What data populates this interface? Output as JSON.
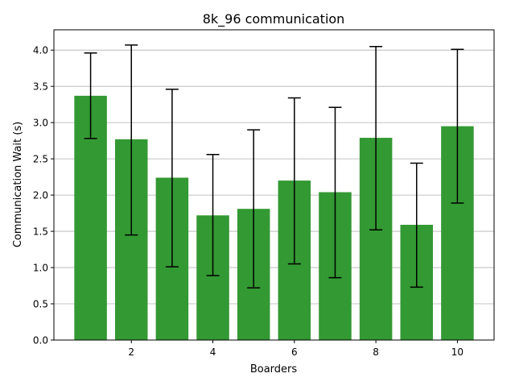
{
  "chart_data": {
    "type": "bar",
    "title": "8k_96 communication",
    "xlabel": "Boarders",
    "ylabel": "Communication Wait (s)",
    "x": [
      1,
      2,
      3,
      4,
      5,
      6,
      7,
      8,
      9,
      10
    ],
    "values": [
      3.37,
      2.77,
      2.24,
      1.72,
      1.81,
      2.2,
      2.04,
      2.79,
      1.59,
      2.95
    ],
    "error_low": [
      2.78,
      1.45,
      1.01,
      0.89,
      0.72,
      1.05,
      0.86,
      1.52,
      0.73,
      1.89
    ],
    "error_high": [
      3.96,
      4.07,
      3.46,
      2.56,
      2.9,
      3.34,
      3.21,
      4.05,
      2.44,
      4.01
    ],
    "xticks": [
      "2",
      "4",
      "6",
      "8",
      "10"
    ],
    "yticks": [
      "0.0",
      "0.5",
      "1.0",
      "1.5",
      "2.0",
      "2.5",
      "3.0",
      "3.5",
      "4.0"
    ],
    "xlim": [
      0.1,
      10.9
    ],
    "ylim": [
      0,
      4.28
    ],
    "grid": "y-axis",
    "bar_color": "#339933",
    "errorbar_color": "#000000"
  }
}
